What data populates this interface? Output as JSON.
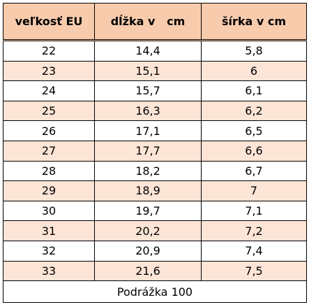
{
  "table": {
    "header": [
      "veľkosť EU",
      "dĺžka v   cm",
      "šírka v cm"
    ],
    "rows": [
      [
        "22",
        "14,4",
        "5,8"
      ],
      [
        "23",
        "15,1",
        "6"
      ],
      [
        "24",
        "15,7",
        "6,1"
      ],
      [
        "25",
        "16,3",
        "6,2"
      ],
      [
        "26",
        "17,1",
        "6,5"
      ],
      [
        "27",
        "17,7",
        "6,6"
      ],
      [
        "28",
        "18,2",
        "6,7"
      ],
      [
        "29",
        "18,9",
        "7"
      ],
      [
        "30",
        "19,7",
        "7,1"
      ],
      [
        "31",
        "20,2",
        "7,2"
      ],
      [
        "32",
        "20,9",
        "7,4"
      ],
      [
        "33",
        "21,6",
        "7,5"
      ]
    ],
    "footer": "Podrážka 100"
  }
}
